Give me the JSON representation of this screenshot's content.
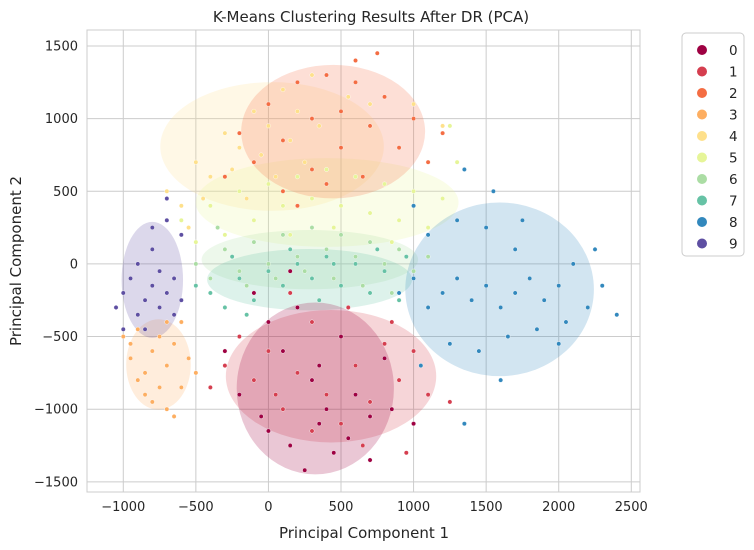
{
  "chart_data": {
    "type": "scatter",
    "title": "K-Means Clustering Results After DR (PCA)",
    "xlabel": "Principal Component 1",
    "ylabel": "Principal Component 2",
    "xlim": [
      -1250,
      2560
    ],
    "ylim": [
      -1570,
      1610
    ],
    "xticks": [
      -1000,
      -500,
      0,
      500,
      1000,
      1500,
      2000,
      2500
    ],
    "yticks": [
      -1500,
      -1000,
      -500,
      0,
      500,
      1000,
      1500
    ],
    "grid": true,
    "legend_position": "outside-top-right",
    "series": [
      {
        "name": "0",
        "color": "#9e0142",
        "points": [
          [
            0,
            -1150
          ],
          [
            150,
            -1250
          ],
          [
            350,
            -1100
          ],
          [
            550,
            -1200
          ],
          [
            700,
            -1050
          ],
          [
            -200,
            -900
          ],
          [
            100,
            -600
          ],
          [
            300,
            -800
          ],
          [
            500,
            -500
          ],
          [
            200,
            -300
          ],
          [
            -100,
            -200
          ],
          [
            400,
            -1000
          ],
          [
            600,
            -900
          ],
          [
            850,
            -1000
          ],
          [
            0,
            -400
          ],
          [
            700,
            -1350
          ],
          [
            250,
            -1420
          ],
          [
            -300,
            -600
          ],
          [
            1000,
            -1100
          ],
          [
            150,
            -50
          ],
          [
            -50,
            -1050
          ],
          [
            450,
            -1300
          ],
          [
            350,
            -700
          ],
          [
            800,
            -650
          ]
        ]
      },
      {
        "name": "1",
        "color": "#d53e4f",
        "points": [
          [
            -300,
            -700
          ],
          [
            -100,
            -800
          ],
          [
            100,
            -1000
          ],
          [
            300,
            -1150
          ],
          [
            500,
            -1100
          ],
          [
            700,
            -950
          ],
          [
            900,
            -800
          ],
          [
            1100,
            -900
          ],
          [
            1250,
            -950
          ],
          [
            -200,
            -500
          ],
          [
            0,
            -600
          ],
          [
            200,
            -750
          ],
          [
            400,
            -900
          ],
          [
            600,
            -700
          ],
          [
            800,
            -550
          ],
          [
            1000,
            -600
          ],
          [
            300,
            -400
          ],
          [
            150,
            -200
          ],
          [
            -400,
            -850
          ],
          [
            550,
            -300
          ],
          [
            950,
            -1300
          ],
          [
            50,
            -900
          ],
          [
            650,
            -1250
          ],
          [
            850,
            -400
          ]
        ]
      },
      {
        "name": "2",
        "color": "#f46d43",
        "points": [
          [
            -200,
            900
          ],
          [
            0,
            1100
          ],
          [
            200,
            1250
          ],
          [
            400,
            1300
          ],
          [
            600,
            1250
          ],
          [
            800,
            1150
          ],
          [
            1000,
            1000
          ],
          [
            1200,
            900
          ],
          [
            -100,
            700
          ],
          [
            100,
            850
          ],
          [
            300,
            1000
          ],
          [
            500,
            1050
          ],
          [
            700,
            950
          ],
          [
            900,
            800
          ],
          [
            1100,
            700
          ],
          [
            300,
            650
          ],
          [
            100,
            500
          ],
          [
            -300,
            600
          ],
          [
            500,
            800
          ],
          [
            750,
            1450
          ],
          [
            600,
            1400
          ],
          [
            200,
            400
          ],
          [
            400,
            550
          ],
          [
            650,
            600
          ]
        ]
      },
      {
        "name": "3",
        "color": "#fdae61",
        "points": [
          [
            -1000,
            -500
          ],
          [
            -950,
            -650
          ],
          [
            -900,
            -800
          ],
          [
            -850,
            -900
          ],
          [
            -800,
            -950
          ],
          [
            -750,
            -850
          ],
          [
            -700,
            -700
          ],
          [
            -650,
            -550
          ],
          [
            -900,
            -450
          ],
          [
            -800,
            -600
          ],
          [
            -700,
            -1000
          ],
          [
            -600,
            -850
          ],
          [
            -550,
            -650
          ],
          [
            -500,
            -750
          ],
          [
            -750,
            -500
          ],
          [
            -850,
            -750
          ],
          [
            -650,
            -1050
          ],
          [
            -600,
            -400
          ],
          [
            -950,
            -550
          ],
          [
            -700,
            -400
          ]
        ]
      },
      {
        "name": "4",
        "color": "#fee08b",
        "points": [
          [
            -700,
            500
          ],
          [
            -500,
            700
          ],
          [
            -300,
            900
          ],
          [
            -100,
            1050
          ],
          [
            100,
            1200
          ],
          [
            300,
            1300
          ],
          [
            -600,
            400
          ],
          [
            -400,
            600
          ],
          [
            -200,
            800
          ],
          [
            0,
            950
          ],
          [
            200,
            1050
          ],
          [
            -450,
            450
          ],
          [
            -250,
            650
          ],
          [
            -50,
            750
          ],
          [
            150,
            850
          ],
          [
            350,
            950
          ],
          [
            700,
            1100
          ],
          [
            1000,
            1100
          ],
          [
            1200,
            950
          ],
          [
            -150,
            450
          ],
          [
            50,
            600
          ],
          [
            250,
            700
          ],
          [
            550,
            1150
          ],
          [
            -550,
            250
          ]
        ]
      },
      {
        "name": "5",
        "color": "#e6f598",
        "points": [
          [
            -600,
            300
          ],
          [
            -400,
            400
          ],
          [
            -200,
            500
          ],
          [
            0,
            550
          ],
          [
            200,
            600
          ],
          [
            400,
            650
          ],
          [
            600,
            600
          ],
          [
            800,
            550
          ],
          [
            1000,
            500
          ],
          [
            1200,
            450
          ],
          [
            1300,
            700
          ],
          [
            -300,
            200
          ],
          [
            -100,
            300
          ],
          [
            100,
            400
          ],
          [
            300,
            450
          ],
          [
            500,
            400
          ],
          [
            700,
            350
          ],
          [
            900,
            300
          ],
          [
            1100,
            250
          ],
          [
            1250,
            950
          ],
          [
            -500,
            150
          ],
          [
            150,
            200
          ],
          [
            450,
            250
          ],
          [
            850,
            150
          ]
        ]
      },
      {
        "name": "6",
        "color": "#abdda4",
        "points": [
          [
            -500,
            0
          ],
          [
            -300,
            100
          ],
          [
            -100,
            150
          ],
          [
            100,
            200
          ],
          [
            300,
            250
          ],
          [
            500,
            200
          ],
          [
            700,
            150
          ],
          [
            900,
            100
          ],
          [
            1100,
            50
          ],
          [
            -400,
            -100
          ],
          [
            -200,
            -50
          ],
          [
            0,
            0
          ],
          [
            200,
            50
          ],
          [
            400,
            100
          ],
          [
            600,
            50
          ],
          [
            800,
            0
          ],
          [
            1000,
            -50
          ],
          [
            -350,
            250
          ],
          [
            -150,
            -150
          ],
          [
            50,
            -100
          ],
          [
            250,
            -50
          ],
          [
            450,
            -100
          ],
          [
            650,
            -150
          ],
          [
            850,
            -200
          ]
        ]
      },
      {
        "name": "7",
        "color": "#66c2a5",
        "points": [
          [
            -400,
            -200
          ],
          [
            -200,
            -100
          ],
          [
            0,
            -50
          ],
          [
            200,
            0
          ],
          [
            400,
            50
          ],
          [
            600,
            0
          ],
          [
            800,
            -50
          ],
          [
            1000,
            -100
          ],
          [
            -300,
            -300
          ],
          [
            -100,
            -250
          ],
          [
            100,
            -150
          ],
          [
            300,
            -100
          ],
          [
            500,
            -150
          ],
          [
            700,
            -200
          ],
          [
            900,
            -250
          ],
          [
            -500,
            -150
          ],
          [
            -250,
            50
          ],
          [
            150,
            100
          ],
          [
            350,
            -250
          ],
          [
            550,
            -300
          ],
          [
            750,
            100
          ],
          [
            950,
            50
          ],
          [
            -150,
            -350
          ],
          [
            450,
            0
          ]
        ]
      },
      {
        "name": "8",
        "color": "#3288bd",
        "points": [
          [
            900,
            -200
          ],
          [
            1000,
            -100
          ],
          [
            1100,
            -300
          ],
          [
            1200,
            -200
          ],
          [
            1300,
            -100
          ],
          [
            1400,
            -250
          ],
          [
            1500,
            -150
          ],
          [
            1600,
            -300
          ],
          [
            1700,
            -200
          ],
          [
            1800,
            -100
          ],
          [
            1900,
            -250
          ],
          [
            2000,
            -150
          ],
          [
            2100,
            0
          ],
          [
            2200,
            -300
          ],
          [
            2300,
            -150
          ],
          [
            2400,
            -350
          ],
          [
            1100,
            200
          ],
          [
            1300,
            300
          ],
          [
            1500,
            250
          ],
          [
            1700,
            100
          ],
          [
            1450,
            -600
          ],
          [
            1650,
            -500
          ],
          [
            1850,
            -450
          ],
          [
            2050,
            -400
          ],
          [
            1250,
            -550
          ],
          [
            1000,
            400
          ],
          [
            1350,
            650
          ],
          [
            1550,
            500
          ],
          [
            1750,
            300
          ],
          [
            2250,
            100
          ],
          [
            1050,
            -700
          ],
          [
            1350,
            -1100
          ],
          [
            2000,
            -550
          ],
          [
            1600,
            -800
          ]
        ]
      },
      {
        "name": "9",
        "color": "#5e4fa2",
        "points": [
          [
            -1050,
            -300
          ],
          [
            -1000,
            -200
          ],
          [
            -950,
            -100
          ],
          [
            -900,
            -350
          ],
          [
            -850,
            -250
          ],
          [
            -800,
            -150
          ],
          [
            -750,
            -300
          ],
          [
            -700,
            -200
          ],
          [
            -650,
            -100
          ],
          [
            -600,
            200
          ],
          [
            -700,
            300
          ],
          [
            -800,
            100
          ],
          [
            -1000,
            -450
          ],
          [
            -900,
            0
          ],
          [
            -850,
            -450
          ],
          [
            -750,
            -50
          ],
          [
            -650,
            -350
          ],
          [
            -600,
            -250
          ],
          [
            -700,
            450
          ],
          [
            -800,
            250
          ]
        ]
      }
    ]
  }
}
